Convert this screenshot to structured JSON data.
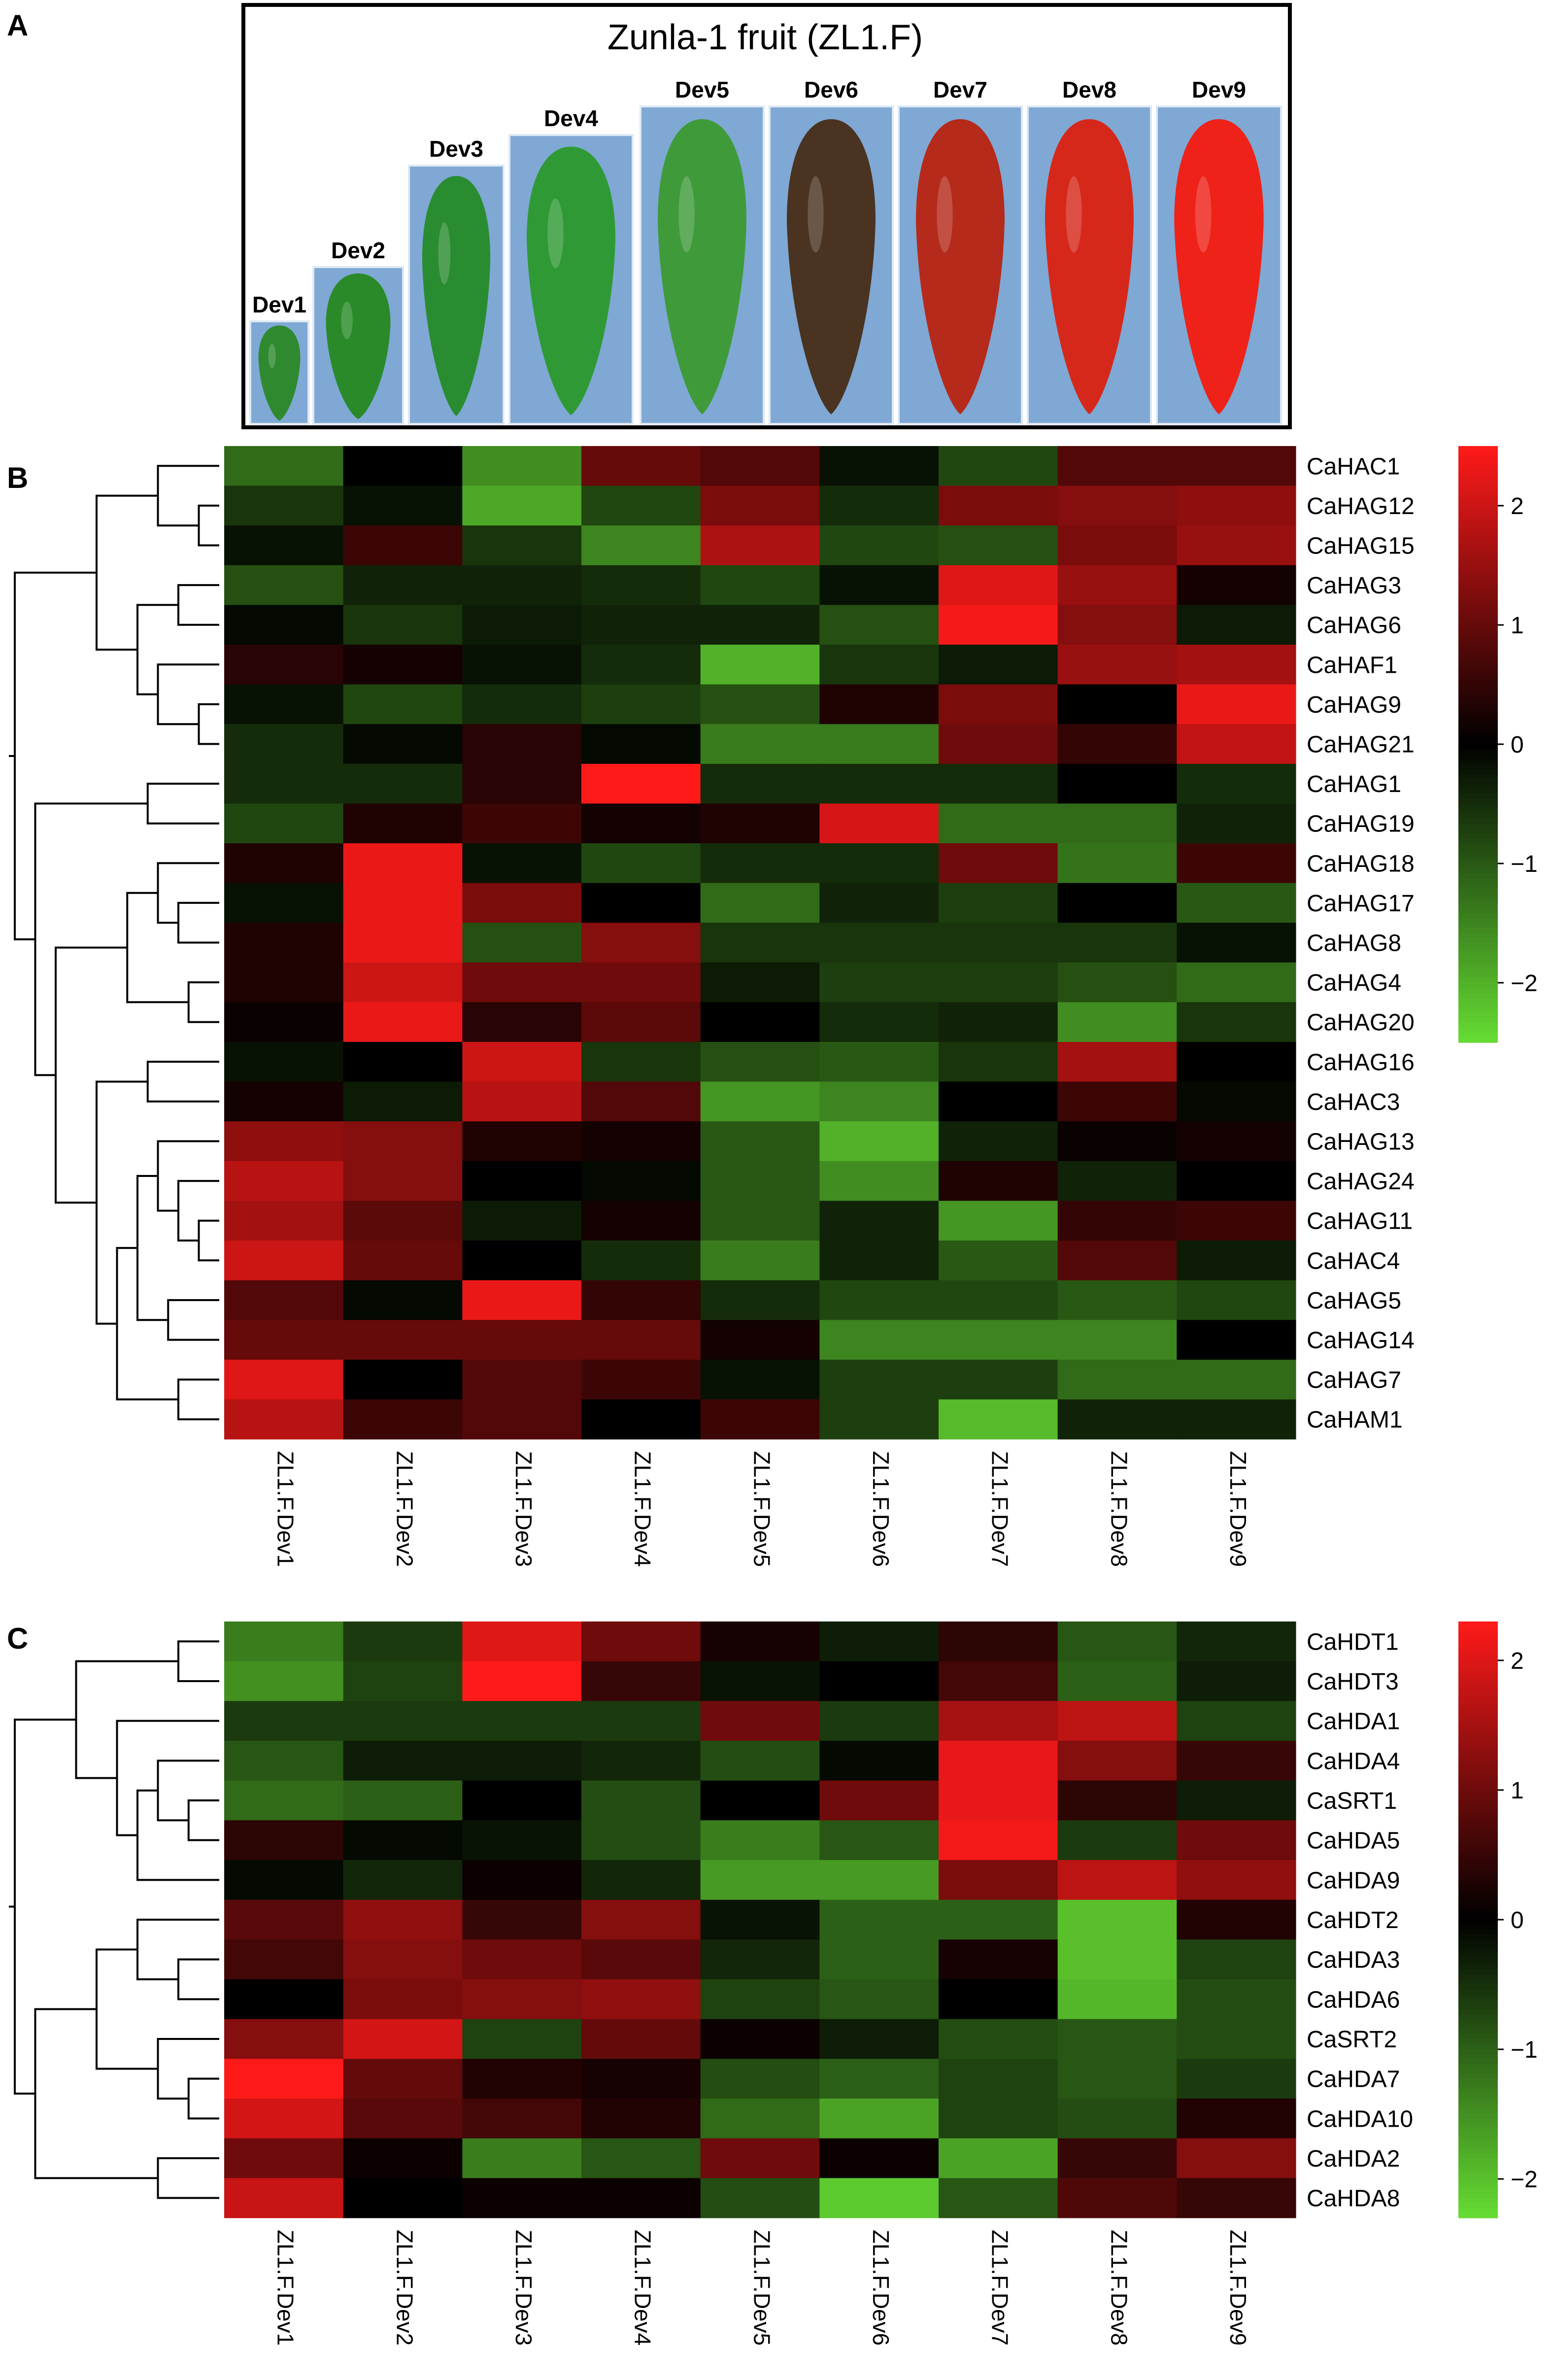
{
  "panel_a": {
    "letter": "A",
    "title": "Zunla-1 fruit (ZL1.F)",
    "stages": [
      {
        "label": "Dev1",
        "fruit": "#2f8a2f"
      },
      {
        "label": "Dev2",
        "fruit": "#2a8a2a"
      },
      {
        "label": "Dev3",
        "fruit": "#2a8c30"
      },
      {
        "label": "Dev4",
        "fruit": "#2f9a35"
      },
      {
        "label": "Dev5",
        "fruit": "#3f9a3a"
      },
      {
        "label": "Dev6",
        "fruit": "#4a3320"
      },
      {
        "label": "Dev7",
        "fruit": "#b52a1a"
      },
      {
        "label": "Dev8",
        "fruit": "#d6281a"
      },
      {
        "label": "Dev9",
        "fruit": "#ee2218"
      }
    ]
  },
  "colors": {
    "low": "#66dd33",
    "mid": "#000000",
    "high": "#ff1a1a"
  },
  "chart_data": [
    {
      "type": "heatmap",
      "panel": "B",
      "columns": [
        "ZL1.F.Dev1",
        "ZL1.F.Dev2",
        "ZL1.F.Dev3",
        "ZL1.F.Dev4",
        "ZL1.F.Dev5",
        "ZL1.F.Dev6",
        "ZL1.F.Dev7",
        "ZL1.F.Dev8",
        "ZL1.F.Dev9"
      ],
      "rows": [
        "CaHAC1",
        "CaHAG12",
        "CaHAG15",
        "CaHAG3",
        "CaHAG6",
        "CaHAF1",
        "CaHAG9",
        "CaHAG21",
        "CaHAG1",
        "CaHAG19",
        "CaHAG18",
        "CaHAG17",
        "CaHAG8",
        "CaHAG4",
        "CaHAG20",
        "CaHAG16",
        "CaHAC3",
        "CaHAG13",
        "CaHAG24",
        "CaHAG11",
        "CaHAC4",
        "CaHAG5",
        "CaHAG14",
        "CaHAG7",
        "CaHAM1"
      ],
      "values": [
        [
          -1.2,
          0.0,
          -1.6,
          1.0,
          0.8,
          -0.2,
          -0.8,
          0.8,
          0.8
        ],
        [
          -0.6,
          -0.2,
          -1.9,
          -0.8,
          1.2,
          -0.5,
          1.2,
          1.3,
          1.4
        ],
        [
          -0.2,
          0.6,
          -0.6,
          -1.5,
          1.7,
          -0.8,
          -0.9,
          1.2,
          1.5
        ],
        [
          -0.9,
          -0.4,
          -0.4,
          -0.5,
          -0.8,
          -0.2,
          2.2,
          1.5,
          0.2
        ],
        [
          -0.1,
          -0.6,
          -0.3,
          -0.4,
          -0.4,
          -0.9,
          2.4,
          1.3,
          -0.3
        ],
        [
          0.4,
          0.2,
          -0.2,
          -0.5,
          -2.0,
          -0.6,
          -0.3,
          1.5,
          1.6
        ],
        [
          -0.2,
          -0.8,
          -0.5,
          -0.7,
          -0.9,
          0.3,
          1.2,
          0.0,
          2.3
        ],
        [
          -0.5,
          -0.1,
          0.4,
          -0.1,
          -1.4,
          -1.4,
          1.1,
          0.5,
          1.9
        ],
        [
          -0.5,
          -0.5,
          0.4,
          2.5,
          -0.5,
          -0.5,
          -0.5,
          0.0,
          -0.5
        ],
        [
          -0.8,
          0.3,
          0.6,
          0.2,
          0.3,
          2.1,
          -1.2,
          -1.2,
          -0.4
        ],
        [
          0.3,
          2.3,
          -0.2,
          -0.8,
          -0.5,
          -0.5,
          1.1,
          -1.3,
          0.6
        ],
        [
          -0.2,
          2.3,
          1.2,
          0.0,
          -1.2,
          -0.4,
          -0.7,
          0.0,
          -1.0
        ],
        [
          0.3,
          2.3,
          -0.9,
          1.3,
          -0.6,
          -0.6,
          -0.6,
          -0.6,
          -0.2
        ],
        [
          0.3,
          2.0,
          1.1,
          1.1,
          -0.3,
          -0.7,
          -0.7,
          -0.9,
          -1.2
        ],
        [
          0.1,
          2.3,
          0.4,
          0.9,
          0.0,
          -0.5,
          -0.4,
          -1.6,
          -0.6
        ],
        [
          -0.2,
          0.0,
          2.0,
          -0.6,
          -0.9,
          -1.0,
          -0.6,
          1.6,
          0.0
        ],
        [
          0.2,
          -0.3,
          1.8,
          0.8,
          -1.7,
          -1.5,
          0.0,
          0.6,
          -0.1
        ],
        [
          1.4,
          1.3,
          0.3,
          0.2,
          -1.0,
          -2.0,
          -0.4,
          0.1,
          0.2
        ],
        [
          1.8,
          1.3,
          0.0,
          -0.1,
          -1.0,
          -1.6,
          0.3,
          -0.4,
          0.0
        ],
        [
          1.6,
          0.9,
          -0.3,
          0.2,
          -1.0,
          -0.4,
          -1.7,
          0.5,
          0.6
        ],
        [
          2.0,
          1.0,
          0.0,
          -0.5,
          -1.4,
          -0.4,
          -1.0,
          0.8,
          -0.3
        ],
        [
          0.8,
          -0.1,
          2.3,
          0.5,
          -0.5,
          -0.8,
          -0.8,
          -1.0,
          -0.8
        ],
        [
          1.0,
          1.0,
          1.0,
          1.0,
          0.2,
          -1.5,
          -1.5,
          -1.5,
          0.0
        ],
        [
          2.2,
          0.0,
          0.8,
          0.6,
          -0.2,
          -0.7,
          -0.7,
          -1.2,
          -1.2
        ],
        [
          1.8,
          0.6,
          0.8,
          0.0,
          0.6,
          -0.7,
          -2.1,
          -0.4,
          -0.4
        ]
      ],
      "colorbar": {
        "ticks": [
          2,
          1,
          0,
          -1,
          -2
        ],
        "range": [
          -2.5,
          2.5
        ]
      }
    },
    {
      "type": "heatmap",
      "panel": "C",
      "columns": [
        "ZL1.F.Dev1",
        "ZL1.F.Dev2",
        "ZL1.F.Dev3",
        "ZL1.F.Dev4",
        "ZL1.F.Dev5",
        "ZL1.F.Dev6",
        "ZL1.F.Dev7",
        "ZL1.F.Dev8",
        "ZL1.F.Dev9"
      ],
      "rows": [
        "CaHDT1",
        "CaHDT3",
        "CaHDA1",
        "CaHDA4",
        "CaSRT1",
        "CaHDA5",
        "CaHDA9",
        "CaHDT2",
        "CaHDA3",
        "CaHDA6",
        "CaSRT2",
        "CaHDA7",
        "CaHDA10",
        "CaHDA2",
        "CaHDA8"
      ],
      "values": [
        [
          -1.3,
          -0.6,
          2.0,
          1.0,
          0.2,
          -0.3,
          0.4,
          -0.9,
          -0.4
        ],
        [
          -1.5,
          -0.7,
          2.3,
          0.5,
          -0.2,
          0.0,
          0.6,
          -1.0,
          -0.3
        ],
        [
          -0.6,
          -0.6,
          -0.6,
          -0.6,
          1.0,
          -0.6,
          1.5,
          1.7,
          -0.7
        ],
        [
          -0.9,
          -0.3,
          -0.3,
          -0.4,
          -0.8,
          -0.1,
          2.1,
          1.2,
          0.5
        ],
        [
          -1.1,
          -1.0,
          0.0,
          -0.8,
          0.0,
          1.0,
          2.1,
          0.4,
          -0.3
        ],
        [
          0.4,
          -0.1,
          -0.2,
          -0.8,
          -1.3,
          -0.9,
          2.2,
          -0.6,
          1.0
        ],
        [
          -0.1,
          -0.4,
          0.1,
          -0.4,
          -1.6,
          -1.6,
          1.1,
          1.7,
          1.3
        ],
        [
          0.8,
          1.3,
          0.5,
          1.2,
          -0.2,
          -1.0,
          -1.0,
          -2.0,
          0.3
        ],
        [
          0.6,
          1.2,
          1.0,
          0.8,
          -0.4,
          -1.0,
          0.2,
          -2.0,
          -0.7
        ],
        [
          0.0,
          1.1,
          1.2,
          1.3,
          -0.7,
          -0.9,
          0.0,
          -1.9,
          -0.8
        ],
        [
          1.2,
          1.9,
          -0.7,
          0.9,
          0.1,
          -0.3,
          -0.8,
          -0.9,
          -0.8
        ],
        [
          2.3,
          0.9,
          0.3,
          0.2,
          -0.8,
          -1.0,
          -0.7,
          -0.9,
          -0.6
        ],
        [
          1.9,
          0.8,
          0.6,
          0.3,
          -1.1,
          -1.7,
          -0.7,
          -0.8,
          0.3
        ],
        [
          1.0,
          0.1,
          -1.3,
          -0.9,
          1.0,
          0.1,
          -1.7,
          0.5,
          1.2
        ],
        [
          1.8,
          0.0,
          0.1,
          0.1,
          -0.8,
          -2.1,
          -0.9,
          0.7,
          0.5
        ]
      ],
      "colorbar": {
        "ticks": [
          2,
          1,
          0,
          -1,
          -2
        ],
        "range": [
          -2.3,
          2.3
        ]
      }
    }
  ],
  "labels": {
    "panel_b_letter": "B",
    "panel_c_letter": "C"
  }
}
